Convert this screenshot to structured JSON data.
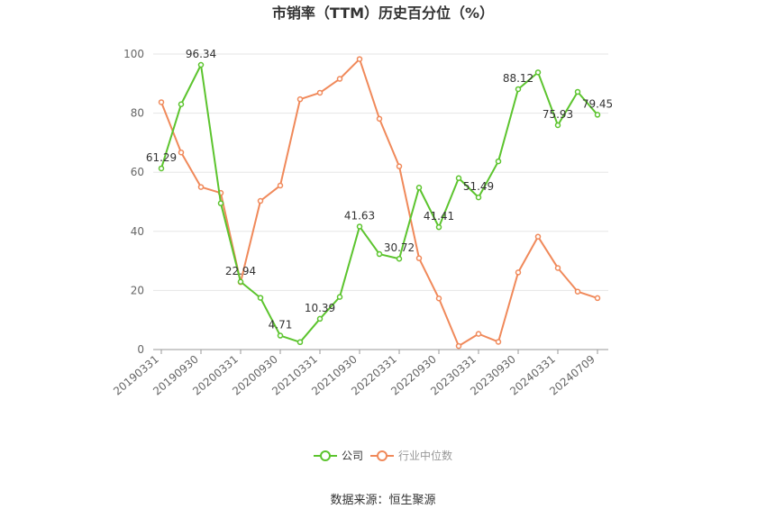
{
  "chart_data": {
    "type": "line",
    "title": "市销率（TTM）历史百分位（%）",
    "xlabel": "",
    "ylabel": "",
    "ylim": [
      0,
      100
    ],
    "yticks": [
      0,
      20,
      40,
      60,
      80,
      100
    ],
    "grid": true,
    "legend_position": "bottom-center",
    "tick_labels": [
      "20190331",
      "20190930",
      "20200331",
      "20200930",
      "20210331",
      "20210930",
      "20220331",
      "20220930",
      "20230331",
      "20230930",
      "20240331",
      "20240709"
    ],
    "series": [
      {
        "name": "公司",
        "color": "#5cc42e",
        "values": [
          61.29,
          83,
          96.34,
          49.5,
          22.94,
          17.5,
          4.71,
          2.5,
          10.39,
          17.8,
          41.63,
          32.3,
          30.72,
          54.8,
          41.41,
          58,
          51.49,
          63.7,
          88.12,
          93.8,
          75.93,
          87.2,
          79.45
        ],
        "labels": {
          "0": "61.29",
          "2": "96.34",
          "4": "22.94",
          "6": "4.71",
          "8": "10.39",
          "10": "41.63",
          "12": "30.72",
          "14": "41.41",
          "16": "51.49",
          "18": "88.12",
          "20": "75.93",
          "22": "79.45"
        }
      },
      {
        "name": "行业中位数",
        "color": "#f0895a",
        "values": [
          83.7,
          66.7,
          55,
          53,
          22.8,
          50.3,
          55.5,
          84.7,
          86.9,
          91.6,
          98.3,
          78.1,
          62,
          30.9,
          17.3,
          1.2,
          5.3,
          2.6,
          26.1,
          38.2,
          27.6,
          19.6,
          17.4
        ]
      }
    ],
    "source": "数据来源：恒生聚源"
  }
}
